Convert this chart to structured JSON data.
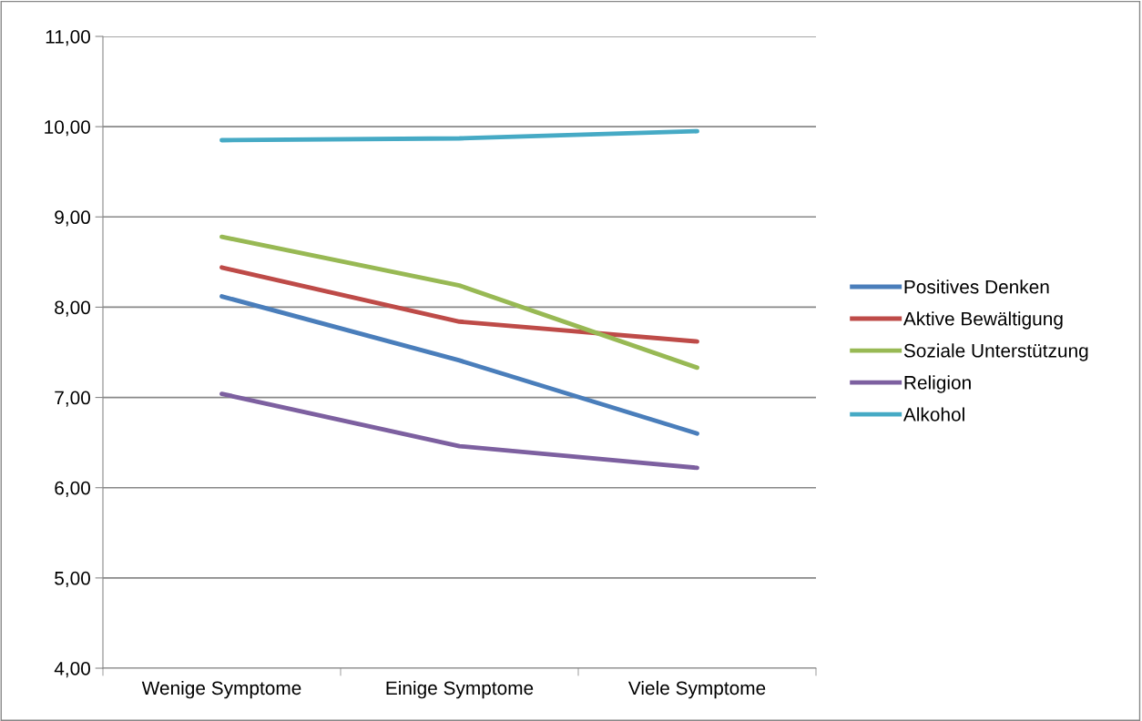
{
  "chart_data": {
    "type": "line",
    "categories": [
      "Wenige Symptome",
      "Einige Symptome",
      "Viele Symptome"
    ],
    "series": [
      {
        "name": "Positives Denken",
        "color": "#4a7ebb",
        "values": [
          8.12,
          7.41,
          6.6
        ]
      },
      {
        "name": "Aktive Bewältigung",
        "color": "#be4b48",
        "values": [
          8.44,
          7.84,
          7.62
        ]
      },
      {
        "name": "Soziale Unterstützung",
        "color": "#98b954",
        "values": [
          8.78,
          8.24,
          7.33
        ]
      },
      {
        "name": "Religion",
        "color": "#7d60a0",
        "values": [
          7.04,
          6.46,
          6.22
        ]
      },
      {
        "name": "Alkohol",
        "color": "#46aac5",
        "values": [
          9.85,
          9.87,
          9.95
        ]
      }
    ],
    "ylim": [
      4,
      11
    ],
    "yticks": [
      {
        "value": 4,
        "label": "4,00"
      },
      {
        "value": 5,
        "label": "5,00"
      },
      {
        "value": 6,
        "label": "6,00"
      },
      {
        "value": 7,
        "label": "7,00"
      },
      {
        "value": 8,
        "label": "8,00"
      },
      {
        "value": 9,
        "label": "9,00"
      },
      {
        "value": 10,
        "label": "10,00"
      },
      {
        "value": 11,
        "label": "11,00"
      }
    ],
    "grid": "y",
    "legend": "right",
    "marker": "none",
    "line_style": "solid"
  }
}
